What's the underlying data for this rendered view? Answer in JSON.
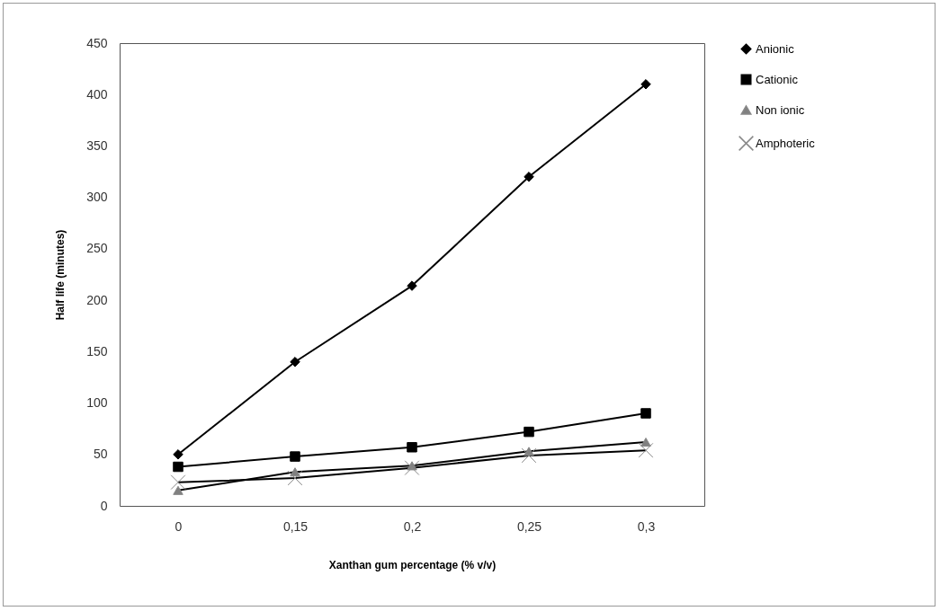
{
  "chart_data": {
    "type": "line",
    "xlabel": "Xanthan gum percentage (% v/v)",
    "ylabel": "Half life (minutes)",
    "categories": [
      "0",
      "0,15",
      "0,2",
      "0,25",
      "0,3"
    ],
    "series": [
      {
        "name": "Anionic",
        "color": "#000000",
        "marker": "diamond",
        "values": [
          50,
          140,
          214,
          320,
          410
        ]
      },
      {
        "name": "Cationic",
        "color": "#000000",
        "marker": "square",
        "values": [
          38,
          48,
          57,
          72,
          90
        ]
      },
      {
        "name": "Non ionic",
        "color": "#000000",
        "marker": "triangle",
        "values": [
          15,
          33,
          39,
          53,
          62
        ]
      },
      {
        "name": "Amphoteric",
        "color": "#000000",
        "marker": "cross",
        "values": [
          23,
          27,
          37,
          49,
          54
        ]
      }
    ],
    "ylim": [
      0,
      450
    ],
    "yticks": [
      0,
      50,
      100,
      150,
      200,
      250,
      300,
      350,
      400,
      450
    ],
    "grid": false,
    "legend": "right"
  }
}
